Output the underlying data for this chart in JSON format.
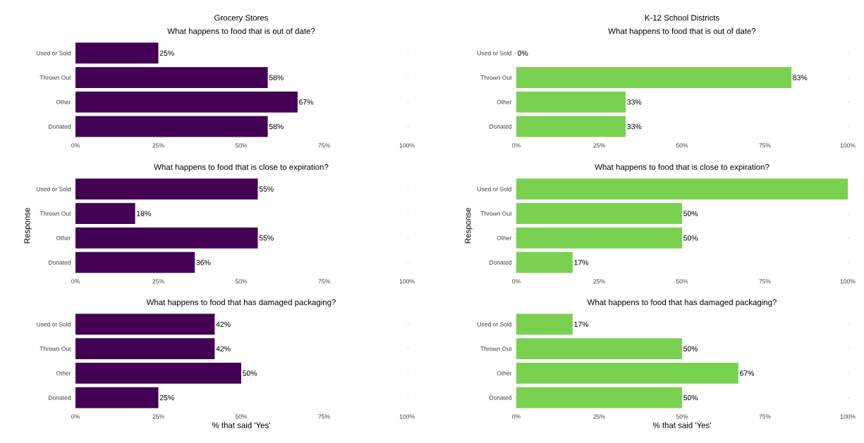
{
  "chart_data": [
    {
      "type": "bar",
      "orientation": "horizontal",
      "title": "Grocery Stores",
      "subtitle": "What happens to food that is out of date?",
      "categories": [
        "Used or Sold",
        "Thrown Out",
        "Other",
        "Donated"
      ],
      "values": [
        25,
        58,
        67,
        58
      ],
      "value_labels": [
        "25%",
        "58%",
        "67%",
        "58%"
      ],
      "color": "#440154",
      "xlim": [
        0,
        100
      ],
      "xticks": [
        {
          "value": 0,
          "label": "0%"
        },
        {
          "value": 25,
          "label": "25%"
        },
        {
          "value": 50,
          "label": "50%"
        },
        {
          "value": 75,
          "label": "75%"
        },
        {
          "value": 100,
          "label": "100%"
        }
      ]
    },
    {
      "type": "bar",
      "orientation": "horizontal",
      "title": "K-12 School Districts",
      "subtitle": "What happens to food that is out of date?",
      "categories": [
        "Used or Sold",
        "Thrown Out",
        "Other",
        "Donated"
      ],
      "values": [
        0,
        83,
        33,
        33
      ],
      "value_labels": [
        "0%",
        "83%",
        "33%",
        "33%"
      ],
      "color": "#7ad151",
      "xlim": [
        0,
        100
      ],
      "xticks": [
        {
          "value": 0,
          "label": "0%"
        },
        {
          "value": 25,
          "label": "25%"
        },
        {
          "value": 50,
          "label": "50%"
        },
        {
          "value": 75,
          "label": "75%"
        },
        {
          "value": 100,
          "label": "100%"
        }
      ]
    },
    {
      "type": "bar",
      "orientation": "horizontal",
      "title": "What happens to food that is close to expiration?",
      "ylabel": "Response",
      "categories": [
        "Used or Sold",
        "Thrown Out",
        "Other",
        "Donated"
      ],
      "values": [
        55,
        18,
        55,
        36
      ],
      "value_labels": [
        "55%",
        "18%",
        "55%",
        "36%"
      ],
      "color": "#440154",
      "xlim": [
        0,
        100
      ],
      "xticks": [
        {
          "value": 0,
          "label": "0%"
        },
        {
          "value": 25,
          "label": "25%"
        },
        {
          "value": 50,
          "label": "50%"
        },
        {
          "value": 75,
          "label": "75%"
        },
        {
          "value": 100,
          "label": "100%"
        }
      ]
    },
    {
      "type": "bar",
      "orientation": "horizontal",
      "title": "What happens to food that is close to expiration?",
      "ylabel": "Response",
      "categories": [
        "Used or Sold",
        "Thrown Out",
        "Other",
        "Donated"
      ],
      "values": [
        100,
        50,
        50,
        17
      ],
      "value_labels": [
        null,
        "50%",
        "50%",
        "17%"
      ],
      "color": "#7ad151",
      "xlim": [
        0,
        100
      ],
      "xticks": [
        {
          "value": 0,
          "label": "0%"
        },
        {
          "value": 25,
          "label": "25%"
        },
        {
          "value": 50,
          "label": "50%"
        },
        {
          "value": 75,
          "label": "75%"
        },
        {
          "value": 100,
          "label": "100%"
        }
      ]
    },
    {
      "type": "bar",
      "orientation": "horizontal",
      "title": "What happens to food that has damaged packaging?",
      "xlabel": "% that said 'Yes'",
      "categories": [
        "Used or Sold",
        "Thrown Out",
        "Other",
        "Donated"
      ],
      "values": [
        42,
        42,
        50,
        25
      ],
      "value_labels": [
        "42%",
        "42%",
        "50%",
        "25%"
      ],
      "color": "#440154",
      "xlim": [
        0,
        100
      ],
      "xticks": [
        {
          "value": 0,
          "label": "0%"
        },
        {
          "value": 25,
          "label": "25%"
        },
        {
          "value": 50,
          "label": "50%"
        },
        {
          "value": 75,
          "label": "75%"
        },
        {
          "value": 100,
          "label": "100%"
        }
      ]
    },
    {
      "type": "bar",
      "orientation": "horizontal",
      "title": "What happens to food that has damaged packaging?",
      "xlabel": "% that said 'Yes'",
      "categories": [
        "Used or Sold",
        "Thrown Out",
        "Other",
        "Donated"
      ],
      "values": [
        17,
        50,
        67,
        50
      ],
      "value_labels": [
        "17%",
        "50%",
        "67%",
        "50%"
      ],
      "color": "#7ad151",
      "xlim": [
        0,
        100
      ],
      "xticks": [
        {
          "value": 0,
          "label": "0%"
        },
        {
          "value": 25,
          "label": "25%"
        },
        {
          "value": 50,
          "label": "50%"
        },
        {
          "value": 75,
          "label": "75%"
        },
        {
          "value": 100,
          "label": "100%"
        }
      ]
    }
  ]
}
